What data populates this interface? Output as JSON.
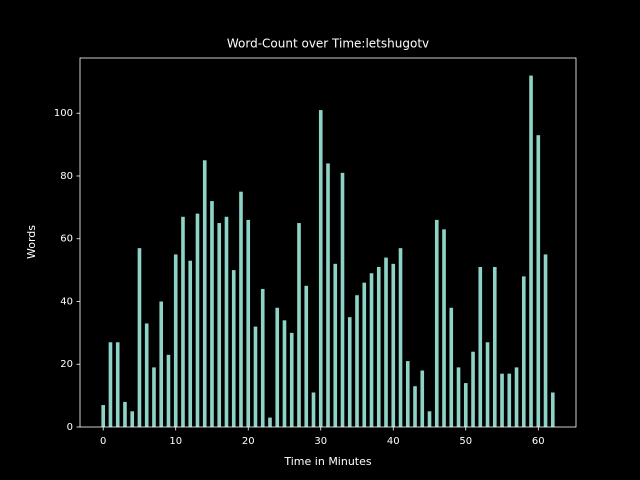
{
  "chart_data": {
    "type": "bar",
    "title": "Word-Count over Time:letshugotv",
    "x_label": "Time in Minutes",
    "y_label": "Words",
    "x": [
      0,
      1,
      2,
      3,
      4,
      5,
      6,
      7,
      8,
      9,
      10,
      11,
      12,
      13,
      14,
      15,
      16,
      17,
      18,
      19,
      20,
      21,
      22,
      23,
      24,
      25,
      26,
      27,
      28,
      29,
      30,
      31,
      32,
      33,
      34,
      35,
      36,
      37,
      38,
      39,
      40,
      41,
      42,
      43,
      44,
      45,
      46,
      47,
      48,
      49,
      50,
      51,
      52,
      53,
      54,
      55,
      56,
      57,
      58,
      59,
      60,
      61,
      62
    ],
    "values": [
      7,
      27,
      27,
      8,
      5,
      57,
      33,
      19,
      40,
      23,
      55,
      67,
      53,
      68,
      85,
      72,
      65,
      67,
      50,
      75,
      66,
      32,
      44,
      3,
      38,
      34,
      30,
      65,
      45,
      11,
      101,
      84,
      52,
      81,
      35,
      42,
      46,
      49,
      51,
      54,
      52,
      57,
      21,
      13,
      18,
      5,
      66,
      63,
      38,
      19,
      14,
      24,
      51,
      27,
      51,
      17,
      17,
      19,
      48,
      112,
      93,
      55,
      11
    ],
    "color": "#8dd3c7",
    "xlim": [
      -3.2,
      65.2
    ],
    "xticks": [
      0,
      10,
      20,
      30,
      40,
      50,
      60
    ],
    "ylim": [
      0,
      117.6
    ],
    "yticks": [
      0,
      20,
      40,
      60,
      80,
      100
    ]
  }
}
